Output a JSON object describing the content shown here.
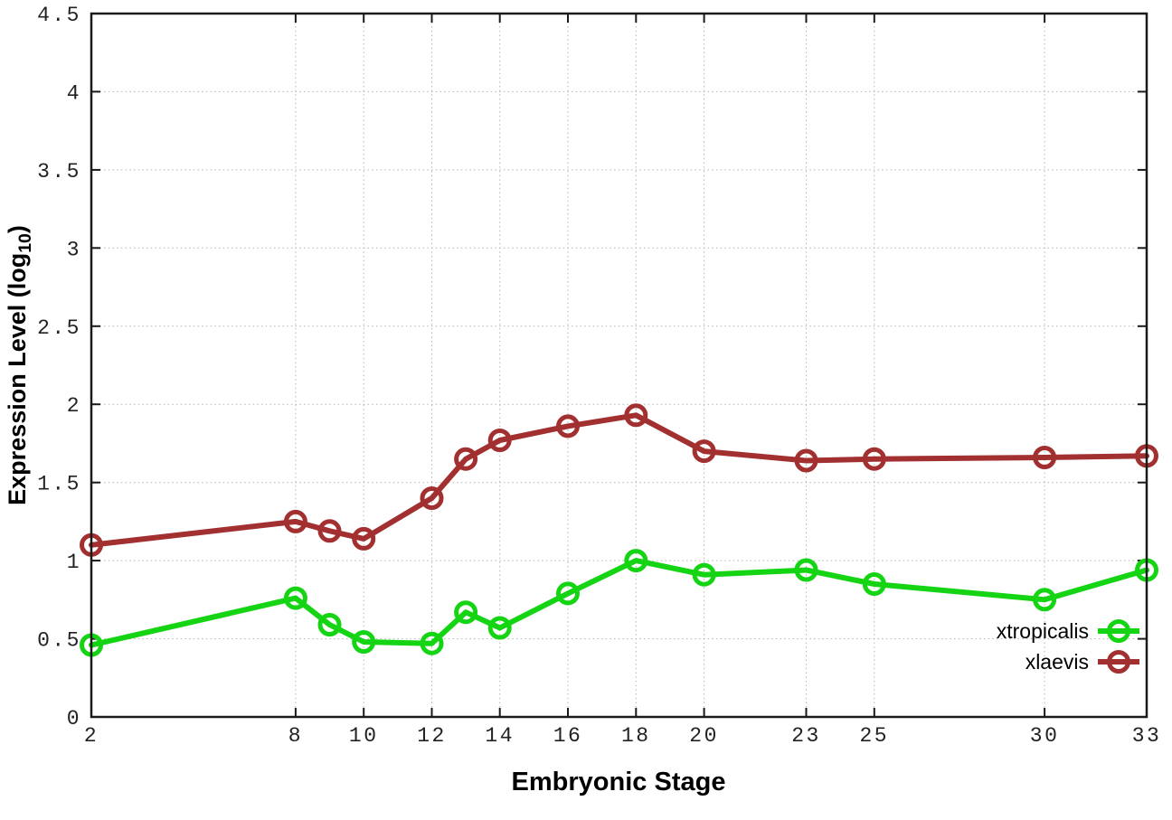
{
  "chart_data": {
    "type": "line",
    "title": "",
    "xlabel": "Embryonic Stage",
    "ylabel_text": "Expression Level (log10)",
    "ylabel_parts": {
      "prefix": "Expression Level (log",
      "sub": "10",
      "suffix": ")"
    },
    "x": [
      2,
      8,
      9,
      10,
      12,
      13,
      14,
      16,
      18,
      20,
      23,
      25,
      30,
      33
    ],
    "series": [
      {
        "name": "xtropicalis",
        "color": "#14d414",
        "values": [
          0.46,
          0.76,
          0.59,
          0.48,
          0.47,
          0.67,
          0.57,
          0.79,
          1.0,
          0.91,
          0.94,
          0.85,
          0.75,
          0.94
        ]
      },
      {
        "name": "xlaevis",
        "color": "#a33030",
        "values": [
          1.1,
          1.25,
          1.19,
          1.14,
          1.4,
          1.65,
          1.77,
          1.86,
          1.93,
          1.7,
          1.64,
          1.65,
          1.66,
          1.67
        ]
      }
    ],
    "xlim": [
      2,
      33
    ],
    "ylim": [
      0,
      4.5
    ],
    "xticks": [
      2,
      8,
      10,
      12,
      14,
      16,
      18,
      20,
      23,
      25,
      30,
      33
    ],
    "yticks": [
      0,
      0.5,
      1,
      1.5,
      2,
      2.5,
      3,
      3.5,
      4,
      4.5
    ],
    "ytick_labels": [
      "0",
      "0.5",
      "1",
      "1.5",
      "2",
      "2.5",
      "3",
      "3.5",
      "4",
      "4.5"
    ],
    "grid": true,
    "legend_position": "inside-bottom-right",
    "marker": "open-circle",
    "background": "#ffffff"
  }
}
